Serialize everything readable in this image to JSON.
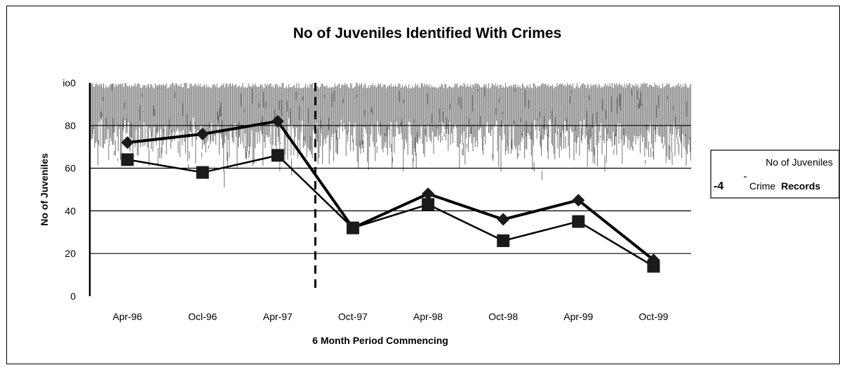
{
  "chart_data": {
    "type": "line",
    "title": "No of Juveniles Identified With Crimes",
    "xlabel": "6 Month Period Commencing",
    "ylabel": "No of Juveniles",
    "categories": [
      "Apr-96",
      "Ocl-96",
      "Apr-97",
      "Oct-97",
      "Apr-98",
      "Oct-98",
      "Apr-99",
      "Oct-99"
    ],
    "ylim": [
      0,
      100
    ],
    "y_ticks": [
      "0",
      "20",
      "40",
      "60",
      "80",
      "io0"
    ],
    "grid": "horizontal",
    "legend_position": "right",
    "series": [
      {
        "name": "Crime Records",
        "marker": "diamond",
        "values": [
          72,
          76,
          82,
          32,
          48,
          36,
          45,
          17
        ]
      },
      {
        "name": "No of Juveniles",
        "marker": "square",
        "values": [
          64,
          58,
          66,
          32,
          43,
          26,
          35,
          14
        ]
      }
    ],
    "legend": {
      "line1": "No of Juveniles",
      "symbol": "-4",
      "line2_prefix": "Crime",
      "line2_bold": "Records"
    },
    "annotations": {
      "dashed_divider_after": "Apr-97"
    }
  },
  "colors": {
    "line": "#000000",
    "marker": "#1a1a1a",
    "texture": "#000000",
    "background": "#ffffff"
  }
}
